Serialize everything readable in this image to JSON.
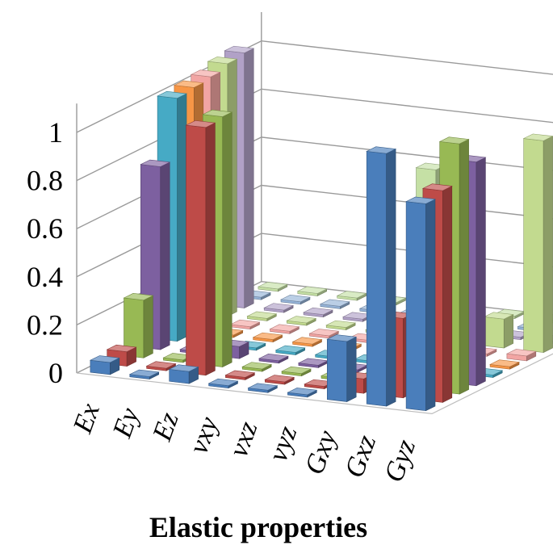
{
  "chart_data": {
    "type": "bar3d",
    "xlabel": "Elastic properties",
    "categories": [
      "Ex",
      "Ey",
      "Ez",
      "vxy",
      "vxz",
      "vyz",
      "Gxy",
      "Gxz",
      "Gyz"
    ],
    "ylim": [
      0,
      1
    ],
    "yticks": [
      "0",
      "0.2",
      "0.4",
      "0.6",
      "0.8",
      "1"
    ],
    "grid": true,
    "legend": "none",
    "colors": [
      "#4a7ebb",
      "#be4b48",
      "#98b954",
      "#7d60a0",
      "#46aac5",
      "#f79646",
      "#f2a5a3",
      "#c2da8f",
      "#b1a1c7",
      "#95b3d7",
      "#c5e0a5"
    ],
    "series": [
      {
        "values": [
          0.05,
          0.01,
          0.05,
          0.01,
          0.01,
          0.01,
          0.25,
          1.05,
          0.86
        ]
      },
      {
        "values": [
          0.06,
          0.01,
          1.03,
          0.01,
          0.01,
          0.01,
          0.06,
          0.33,
          0.88
        ]
      },
      {
        "values": [
          0.24,
          0.01,
          1.04,
          0.01,
          0.01,
          0.01,
          0.03,
          0.15,
          1.04
        ]
      },
      {
        "values": [
          0.76,
          0.01,
          0.05,
          0.01,
          0.01,
          0.01,
          0.01,
          0.51,
          0.93
        ]
      },
      {
        "values": [
          1.01,
          0.01,
          0.01,
          0.01,
          0.01,
          0.01,
          0.01,
          0.04,
          0.01
        ]
      },
      {
        "values": [
          1.02,
          0.01,
          0.01,
          0.01,
          0.01,
          0.01,
          0.01,
          0.01,
          0.01
        ]
      },
      {
        "values": [
          1.03,
          0.01,
          0.01,
          0.01,
          0.01,
          0.07,
          0.01,
          0.01,
          0.02
        ]
      },
      {
        "values": [
          1.05,
          0.01,
          0.01,
          0.01,
          0.01,
          0.01,
          0.01,
          0.12,
          0.88
        ]
      },
      {
        "values": [
          1.06,
          0.01,
          0.01,
          0.01,
          0.01,
          0.01,
          0.01,
          0.01,
          0.01
        ]
      },
      {
        "values": [
          0.01,
          0.01,
          0.01,
          0.01,
          0.01,
          0.01,
          0.01,
          0.01,
          0.93
        ]
      },
      {
        "values": [
          0.01,
          0.01,
          0.01,
          0.01,
          0.58,
          0.01,
          0.01,
          0.01,
          0.94
        ]
      }
    ]
  }
}
